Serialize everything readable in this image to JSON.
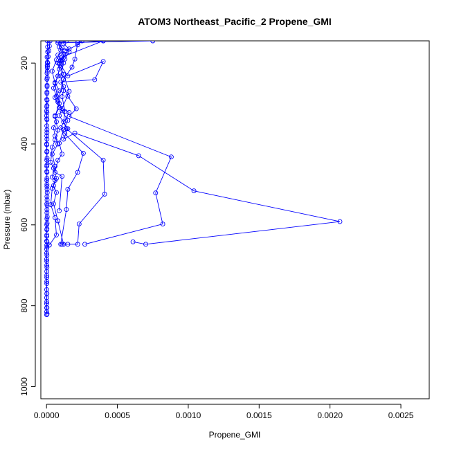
{
  "chart_data": {
    "type": "line",
    "title": "ATOM3 Northeast_Pacific_2 Propene_GMI",
    "xlabel": "Propene_GMI",
    "ylabel": "Pressure (mbar)",
    "xlim": [
      -4e-05,
      0.0027
    ],
    "ylim": [
      1030,
      145
    ],
    "y_reversed": true,
    "x_ticks": [
      "0.0000",
      "0.0005",
      "0.0010",
      "0.0015",
      "0.0020",
      "0.0025"
    ],
    "x_tick_values": [
      0,
      0.0005,
      0.001,
      0.0015,
      0.002,
      0.0025
    ],
    "y_ticks": [
      "200",
      "400",
      "600",
      "800",
      "1000"
    ],
    "y_tick_values": [
      200,
      400,
      600,
      800,
      1000
    ],
    "grid": false,
    "line_color": "#0000ff",
    "marker": "open-circle",
    "series": [
      {
        "values": [
          [
            1e-06,
            822
          ],
          [
            1e-06,
            815
          ],
          [
            1e-06,
            805
          ],
          [
            1e-06,
            795
          ],
          [
            1e-06,
            780
          ],
          [
            2e-06,
            770
          ],
          [
            1e-06,
            760
          ],
          [
            2e-06,
            740
          ],
          [
            2e-06,
            730
          ],
          [
            2e-06,
            715
          ],
          [
            2e-06,
            700
          ],
          [
            1e-06,
            685
          ],
          [
            1e-06,
            670
          ],
          [
            1e-06,
            660
          ],
          [
            2e-06,
            650
          ],
          [
            1e-06,
            640
          ],
          [
            2e-06,
            625
          ],
          [
            2e-06,
            612
          ],
          [
            2e-06,
            600
          ],
          [
            3e-06,
            585
          ],
          [
            3e-06,
            570
          ],
          [
            4e-06,
            552
          ],
          [
            4e-06,
            538
          ],
          [
            5e-06,
            520
          ],
          [
            3e-06,
            505
          ],
          [
            2e-06,
            490
          ],
          [
            3e-06,
            470
          ],
          [
            2e-06,
            455
          ],
          [
            2e-06,
            440
          ],
          [
            2e-06,
            420
          ],
          [
            1e-06,
            400
          ],
          [
            2e-06,
            380
          ],
          [
            3e-06,
            365
          ],
          [
            3e-06,
            340
          ],
          [
            1e-06,
            330
          ],
          [
            1e-06,
            318
          ],
          [
            2e-06,
            308
          ],
          [
            2e-06,
            290
          ],
          [
            3e-06,
            275
          ],
          [
            4e-06,
            258
          ],
          [
            3e-06,
            240
          ],
          [
            4e-06,
            225
          ],
          [
            5e-06,
            212
          ],
          [
            5e-06,
            205
          ],
          [
            6e-06,
            198
          ],
          [
            4e-06,
            185
          ],
          [
            8e-06,
            172
          ],
          [
            8e-06,
            160
          ],
          [
            6e-06,
            145
          ]
        ]
      },
      {
        "values": [
          [
            4e-06,
            820
          ],
          [
            3e-06,
            805
          ],
          [
            2e-06,
            790
          ],
          [
            3e-06,
            770
          ],
          [
            2e-06,
            745
          ],
          [
            2e-06,
            725
          ],
          [
            3e-06,
            705
          ],
          [
            2e-06,
            690
          ],
          [
            3e-06,
            675
          ],
          [
            3e-06,
            655
          ],
          [
            3e-06,
            642
          ],
          [
            2e-06,
            628
          ],
          [
            3e-06,
            610
          ],
          [
            4e-06,
            596
          ],
          [
            5e-06,
            580
          ],
          [
            3e-06,
            562
          ],
          [
            2e-06,
            548
          ],
          [
            3e-06,
            530
          ],
          [
            4e-06,
            512
          ],
          [
            3e-06,
            500
          ],
          [
            3e-06,
            485
          ],
          [
            2e-06,
            468
          ],
          [
            3e-06,
            452
          ],
          [
            4e-06,
            435
          ],
          [
            3e-06,
            418
          ],
          [
            2e-06,
            402
          ],
          [
            3e-06,
            388
          ],
          [
            3e-06,
            372
          ],
          [
            2e-06,
            355
          ],
          [
            2e-06,
            338
          ],
          [
            3e-06,
            322
          ],
          [
            3e-06,
            305
          ],
          [
            4e-06,
            292
          ],
          [
            3e-06,
            272
          ],
          [
            4e-06,
            255
          ],
          [
            5e-06,
            236
          ],
          [
            6e-06,
            220
          ],
          [
            7e-06,
            208
          ],
          [
            9e-06,
            200
          ],
          [
            1.2e-05,
            184
          ],
          [
            1.6e-05,
            170
          ],
          [
            2e-05,
            158
          ],
          [
            2.5e-05,
            145
          ]
        ]
      },
      {
        "values": [
          [
            2e-05,
            650
          ],
          [
            7e-05,
            625
          ],
          [
            6e-05,
            582
          ],
          [
            3e-05,
            550
          ],
          [
            4e-05,
            510
          ],
          [
            6e-05,
            490
          ],
          [
            4e-05,
            482
          ],
          [
            6e-05,
            455
          ],
          [
            4e-05,
            425
          ],
          [
            8e-05,
            400
          ],
          [
            6e-05,
            380
          ],
          [
            5e-05,
            360
          ],
          [
            7e-05,
            345
          ],
          [
            6e-05,
            330
          ],
          [
            9e-05,
            310
          ],
          [
            6e-05,
            285
          ],
          [
            9e-05,
            268
          ],
          [
            6e-05,
            248
          ],
          [
            8e-05,
            232
          ],
          [
            9e-05,
            215
          ],
          [
            8e-05,
            200
          ],
          [
            0.00011,
            192
          ],
          [
            0.00013,
            178
          ],
          [
            0.00016,
            165
          ],
          [
            0.00012,
            152
          ],
          [
            0.00014,
            145
          ]
        ]
      },
      {
        "values": [
          [
            0.00011,
            648
          ],
          [
            0.00015,
            648
          ],
          [
            0.00022,
            648
          ],
          [
            0.00023,
            598
          ],
          [
            0.00041,
            524
          ],
          [
            0.0004,
            440
          ],
          [
            0.00014,
            362
          ],
          [
            0.00012,
            345
          ],
          [
            0.00013,
            320
          ],
          [
            0.00011,
            283
          ],
          [
            0.00012,
            268
          ],
          [
            0.0001,
            232
          ],
          [
            0.00012,
            200
          ],
          [
            0.0001,
            193
          ],
          [
            8e-05,
            180
          ],
          [
            0.00013,
            170
          ],
          [
            0.00022,
            155
          ],
          [
            0.00025,
            145
          ]
        ]
      },
      {
        "values": [
          [
            0.00027,
            648
          ],
          [
            0.00082,
            598
          ],
          [
            0.00077,
            521
          ],
          [
            0.00088,
            432
          ],
          [
            0.00016,
            332
          ],
          [
            0.00021,
            313
          ],
          [
            0.00015,
            282
          ],
          [
            0.00012,
            258
          ],
          [
            0.0001,
            247
          ],
          [
            0.00034,
            241
          ],
          [
            0.0004,
            196
          ],
          [
            0.00015,
            232
          ],
          [
            9e-05,
            200
          ],
          [
            0.00011,
            185
          ],
          [
            0.0004,
            145
          ]
        ]
      },
      {
        "values": [
          [
            0.00061,
            642
          ],
          [
            0.0007,
            648
          ],
          [
            0.00207,
            592
          ],
          [
            0.00104,
            516
          ],
          [
            0.00065,
            429
          ],
          [
            0.0002,
            373
          ],
          [
            0.00012,
            388
          ],
          [
            0.00015,
            362
          ],
          [
            9e-05,
            330
          ],
          [
            0.00016,
            270
          ],
          [
            0.00012,
            228
          ],
          [
            0.0001,
            210
          ],
          [
            0.00013,
            190
          ],
          [
            0.00016,
            172
          ],
          [
            0.00011,
            162
          ],
          [
            8e-05,
            150
          ],
          [
            0.00075,
            145
          ]
        ]
      },
      {
        "values": [
          [
            0.0001,
            648
          ],
          [
            0.00014,
            562
          ],
          [
            0.00015,
            512
          ],
          [
            0.00022,
            470
          ],
          [
            0.00026,
            423
          ],
          [
            0.00013,
            375
          ],
          [
            0.0001,
            360
          ],
          [
            0.00016,
            322
          ],
          [
            0.00011,
            312
          ],
          [
            8e-05,
            296
          ],
          [
            0.00012,
            240
          ],
          [
            0.00018,
            210
          ],
          [
            0.0002,
            190
          ],
          [
            0.00022,
            150
          ],
          [
            0.0004,
            145
          ]
        ]
      },
      {
        "values": [
          [
            9e-05,
            565
          ],
          [
            0.00011,
            480
          ],
          [
            6e-05,
            470
          ],
          [
            8e-05,
            440
          ],
          [
            0.00011,
            425
          ],
          [
            9e-05,
            398
          ],
          [
            0.00012,
            365
          ],
          [
            0.00015,
            342
          ],
          [
            0.00011,
            318
          ],
          [
            8e-05,
            292
          ],
          [
            6e-05,
            250
          ],
          [
            4e-05,
            220
          ],
          [
            7e-05,
            192
          ],
          [
            0.0001,
            168
          ],
          [
            8e-05,
            145
          ]
        ]
      },
      {
        "values": [
          [
            0.00012,
            648
          ],
          [
            8e-05,
            590
          ],
          [
            5e-05,
            548
          ],
          [
            7e-05,
            520
          ],
          [
            5e-05,
            503
          ],
          [
            7e-05,
            485
          ],
          [
            5e-05,
            460
          ],
          [
            3e-05,
            445
          ],
          [
            4e-05,
            408
          ],
          [
            6e-05,
            390
          ],
          [
            8e-05,
            366
          ],
          [
            6e-05,
            332
          ],
          [
            9e-05,
            300
          ],
          [
            7e-05,
            282
          ],
          [
            5e-05,
            262
          ],
          [
            8e-05,
            232
          ],
          [
            0.0001,
            195
          ],
          [
            0.00012,
            180
          ],
          [
            9e-05,
            160
          ],
          [
            0.00011,
            145
          ]
        ]
      }
    ]
  }
}
